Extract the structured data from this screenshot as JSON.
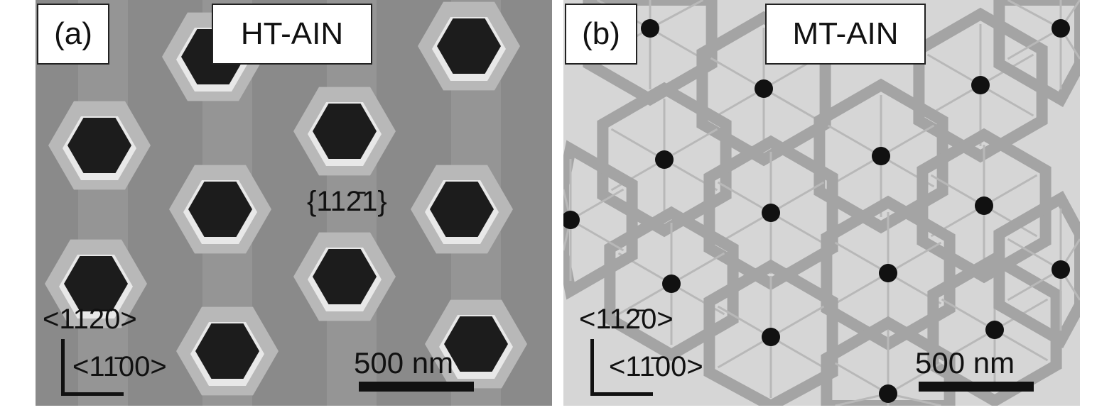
{
  "panels": [
    {
      "label": "(a)",
      "title": "HT-AIN",
      "annotation": "{112̄1}",
      "direction_up": "<112̄0>",
      "direction_right": "<11̄00>",
      "scale_bar": "500 nm"
    },
    {
      "label": "(b)",
      "title": "MT-AIN",
      "direction_up": "<112̄0>",
      "direction_right": "<11̄00>",
      "scale_bar": "500 nm"
    }
  ]
}
